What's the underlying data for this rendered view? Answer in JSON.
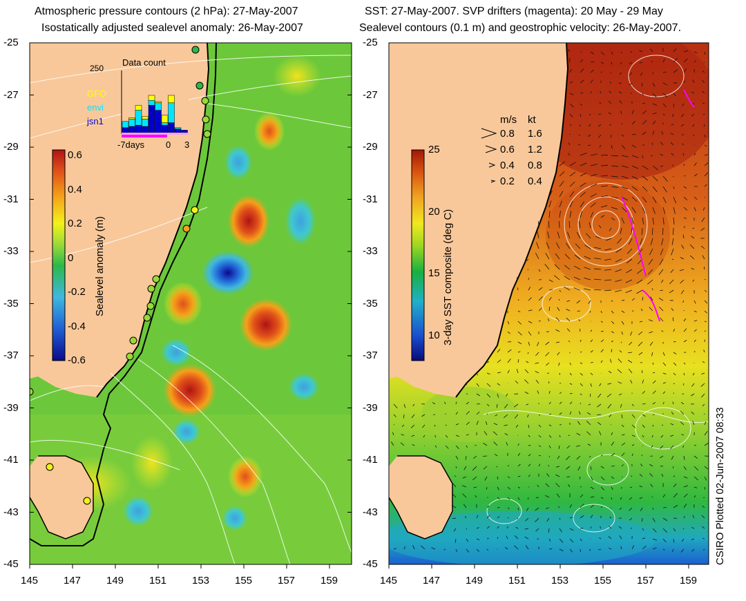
{
  "left_panel": {
    "title_line1": "Atmospheric pressure contours (2 hPa): 27-May-2007",
    "title_line2": "Isostatically adjusted sealevel anomaly: 26-May-2007",
    "lat_ticks": [
      "-25",
      "-27",
      "-29",
      "-31",
      "-33",
      "-35",
      "-37",
      "-39",
      "-41",
      "-43",
      "-45"
    ],
    "lon_ticks": [
      "145",
      "147",
      "149",
      "151",
      "153",
      "155",
      "157",
      "159"
    ],
    "colorbar": {
      "label": "Sealevel anomaly (m)",
      "ticks": [
        "0.6",
        "0.4",
        "0.2",
        "0",
        "-0.2",
        "-0.4",
        "-0.6"
      ],
      "range": [
        -0.6,
        0.6
      ]
    },
    "inset": {
      "title": "Data count",
      "ymax_label": "250",
      "legend": [
        {
          "name": "GFO",
          "color": "#ffff00"
        },
        {
          "name": "envi",
          "color": "#00e5ff"
        },
        {
          "name": "jsn1",
          "color": "#0000cc"
        }
      ],
      "x_labels": [
        "-7days",
        "0",
        "3"
      ],
      "bars": [
        {
          "jsn1": 20,
          "envi": 25,
          "gfo": 0
        },
        {
          "jsn1": 25,
          "envi": 30,
          "gfo": 5
        },
        {
          "jsn1": 30,
          "envi": 60,
          "gfo": 20
        },
        {
          "jsn1": 25,
          "envi": 30,
          "gfo": 10
        },
        {
          "jsn1": 110,
          "envi": 20,
          "gfo": 20
        },
        {
          "jsn1": 90,
          "envi": 30,
          "gfo": 5
        },
        {
          "jsn1": 30,
          "envi": 10,
          "gfo": 30
        },
        {
          "jsn1": 40,
          "envi": 80,
          "gfo": 30
        },
        {
          "jsn1": 15,
          "envi": 5,
          "gfo": 0
        },
        {
          "jsn1": 10,
          "envi": 0,
          "gfo": 0
        }
      ]
    }
  },
  "right_panel": {
    "title_line1": "SST: 27-May-2007. SVP drifters (magenta): 20 May - 29 May",
    "title_line2": "Sealevel contours (0.1 m) and geostrophic velocity: 26-May-2007.",
    "lat_ticks": [
      "-25",
      "-27",
      "-29",
      "-31",
      "-33",
      "-35",
      "-37",
      "-39",
      "-41",
      "-43",
      "-45"
    ],
    "lon_ticks": [
      "145",
      "147",
      "149",
      "151",
      "153",
      "155",
      "157",
      "159"
    ],
    "colorbar": {
      "label": "3-day SST composite (deg C)",
      "ticks": [
        "25",
        "20",
        "15",
        "10"
      ],
      "range": [
        8,
        25
      ]
    },
    "velocity_legend": {
      "headers": [
        "m/s",
        "kt"
      ],
      "rows": [
        [
          "0.8",
          "1.6"
        ],
        [
          "0.6",
          "1.2"
        ],
        [
          "0.4",
          "0.8"
        ],
        [
          "0.2",
          "0.4"
        ]
      ]
    }
  },
  "credit": "CSIRO Plotted 02-Jun-2007 08:33",
  "colors": {
    "land": "#f8c89a",
    "anomaly_scale": [
      "#0a0a8c",
      "#1f5fd4",
      "#3fb8e0",
      "#2cb84a",
      "#9ad93a",
      "#f2f21a",
      "#f5a01a",
      "#e0501a",
      "#b01414"
    ],
    "sst_scale": [
      "#0a0a7a",
      "#1a4fd0",
      "#20b0c8",
      "#18b040",
      "#a0d820",
      "#f0e820",
      "#f0a020",
      "#d85010",
      "#a01808"
    ]
  }
}
